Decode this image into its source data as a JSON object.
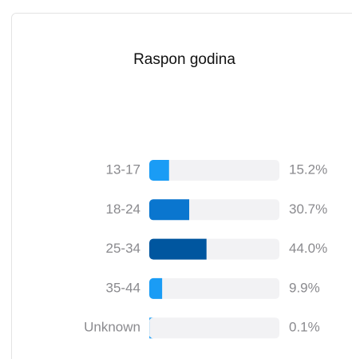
{
  "chart_data": {
    "type": "bar",
    "orientation": "horizontal",
    "title": "Raspon godina",
    "categories": [
      "13-17",
      "18-24",
      "25-34",
      "35-44",
      "Unknown"
    ],
    "values": [
      15.2,
      30.7,
      44.0,
      9.9,
      0.1
    ],
    "value_labels": [
      "15.2%",
      "30.7%",
      "44.0%",
      "9.9%",
      "0.1%"
    ],
    "colors": [
      "#1a9cf5",
      "#0a76cf",
      "#00569f",
      "#1a9cf5",
      "#1a9cf5"
    ],
    "track_color": "#f2f2f4",
    "xlim": [
      0,
      100
    ]
  }
}
